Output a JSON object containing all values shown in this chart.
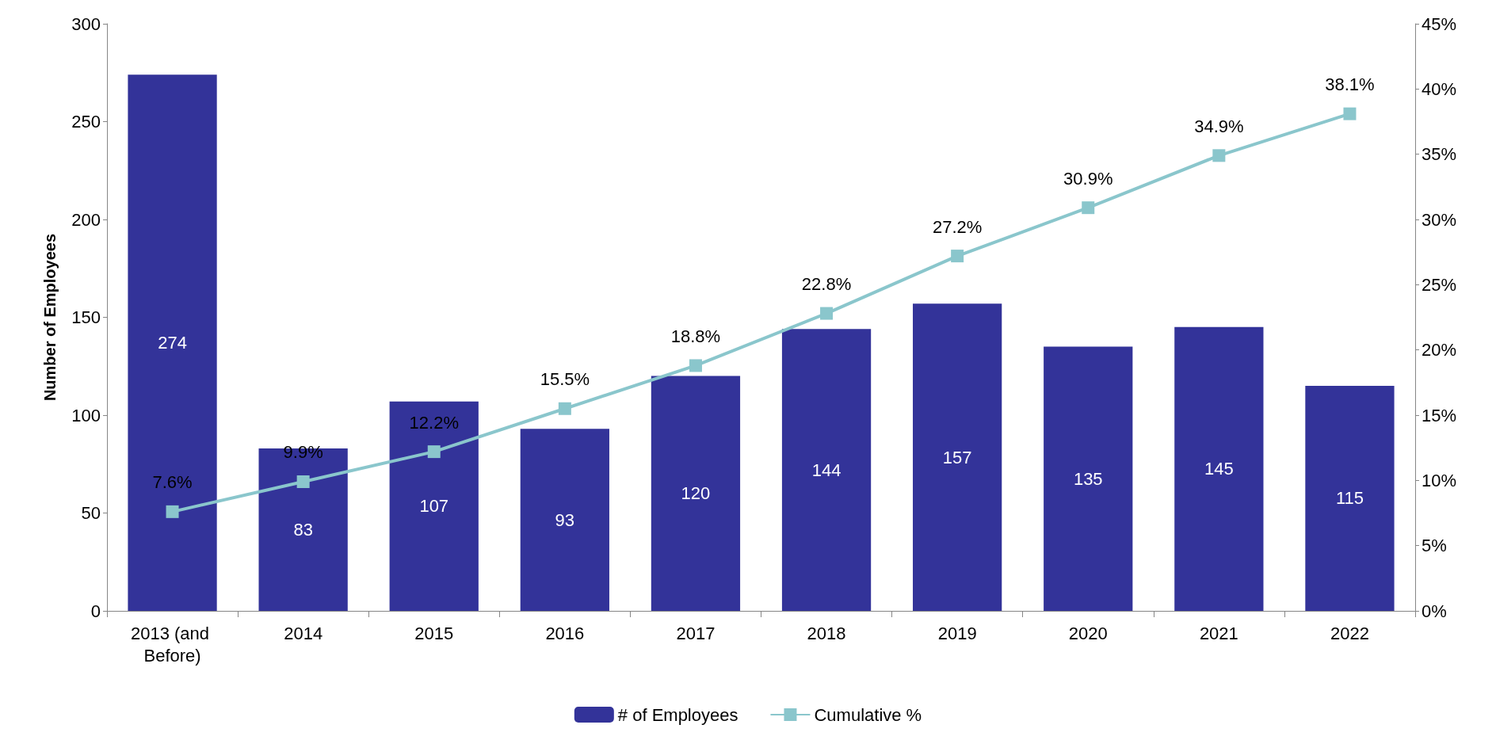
{
  "chart_data": {
    "type": "bar",
    "categories": [
      "2013 (and Before)",
      "2014",
      "2015",
      "2016",
      "2017",
      "2018",
      "2019",
      "2020",
      "2021",
      "2022"
    ],
    "series": [
      {
        "name": "# of Employees",
        "color": "#333399",
        "values": [
          274,
          83,
          107,
          93,
          120,
          144,
          157,
          135,
          145,
          115
        ],
        "value_labels": [
          "274",
          "83",
          "107",
          "93",
          "120",
          "144",
          "157",
          "135",
          "145",
          "115"
        ]
      },
      {
        "name": "Cumulative %",
        "type": "line",
        "axis": "y2",
        "color": "#8ac6cc",
        "marker": "square",
        "values": [
          7.6,
          9.9,
          12.2,
          15.5,
          18.8,
          22.8,
          27.2,
          30.9,
          34.9,
          38.1
        ],
        "value_labels": [
          "7.6%",
          "9.9%",
          "12.2%",
          "15.5%",
          "18.8%",
          "22.8%",
          "27.2%",
          "30.9%",
          "34.9%",
          "38.1%"
        ]
      }
    ],
    "ylabel": "Number of Employees",
    "ylim": [
      0,
      300
    ],
    "yticks": [
      0,
      50,
      100,
      150,
      200,
      250,
      300
    ],
    "y2lim": [
      0,
      45
    ],
    "y2ticks": [
      {
        "value": 0,
        "label": "0%"
      },
      {
        "value": 5,
        "label": "5%"
      },
      {
        "value": 10,
        "label": "10%"
      },
      {
        "value": 15,
        "label": "15%"
      },
      {
        "value": 20,
        "label": "20%"
      },
      {
        "value": 25,
        "label": "25%"
      },
      {
        "value": 30,
        "label": "30%"
      },
      {
        "value": 35,
        "label": "35%"
      },
      {
        "value": 40,
        "label": "40%"
      },
      {
        "value": 45,
        "label": "45%"
      }
    ],
    "grid": false,
    "legend": "bottom"
  }
}
